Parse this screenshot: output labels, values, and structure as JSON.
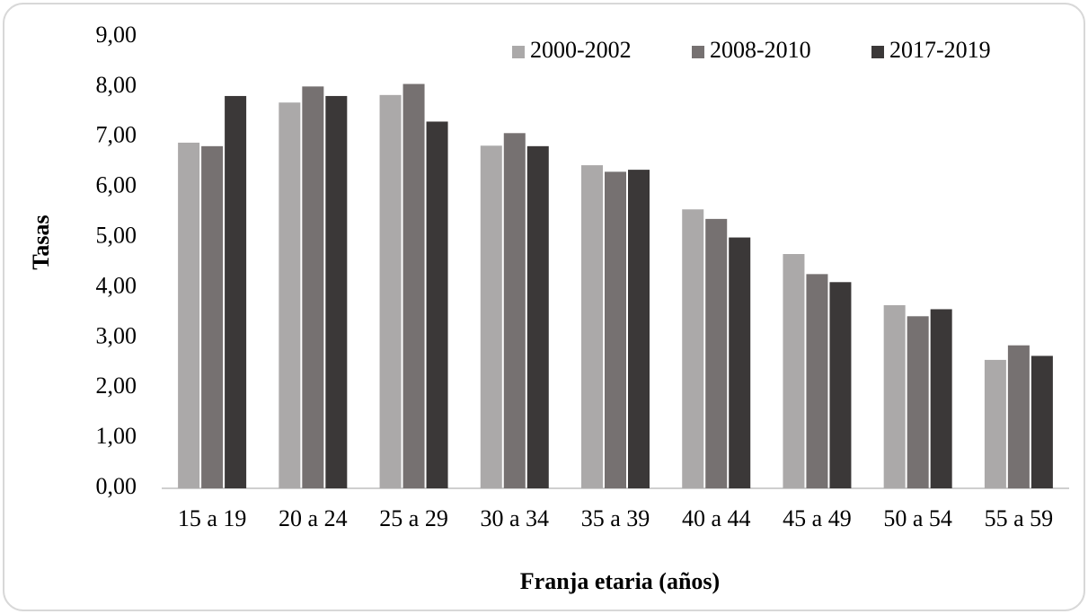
{
  "chart_data": {
    "type": "bar",
    "x_label": "Franja etaria (años)",
    "y_label": "Tasas",
    "categories": [
      "15 a 19",
      "20 a 24",
      "25 a 29",
      "30 a 34",
      "35 a 39",
      "40 a 44",
      "45 a 49",
      "50 a 54",
      "55 a 59"
    ],
    "series": [
      {
        "name": "2000-2002",
        "color": "#aba9a9",
        "values": [
          6.89,
          7.69,
          7.84,
          6.83,
          6.44,
          5.56,
          4.67,
          3.65,
          2.56
        ]
      },
      {
        "name": "2008-2010",
        "color": "#767171",
        "values": [
          6.82,
          8.01,
          8.06,
          7.08,
          6.31,
          5.37,
          4.27,
          3.43,
          2.85
        ]
      },
      {
        "name": "2017-2019",
        "color": "#3b3838",
        "values": [
          7.82,
          7.82,
          7.31,
          6.82,
          6.35,
          5.0,
          4.11,
          3.57,
          2.64
        ]
      }
    ],
    "ylim": [
      0,
      9
    ],
    "yticks": [
      {
        "value": 0,
        "label": "0,00"
      },
      {
        "value": 1,
        "label": "1,00"
      },
      {
        "value": 2,
        "label": "2,00"
      },
      {
        "value": 3,
        "label": "3,00"
      },
      {
        "value": 4,
        "label": "4,00"
      },
      {
        "value": 5,
        "label": "5,00"
      },
      {
        "value": 6,
        "label": "6,00"
      },
      {
        "value": 7,
        "label": "7,00"
      },
      {
        "value": 8,
        "label": "8,00"
      },
      {
        "value": 9,
        "label": "9,00"
      }
    ],
    "grid": false,
    "legend": "top"
  }
}
